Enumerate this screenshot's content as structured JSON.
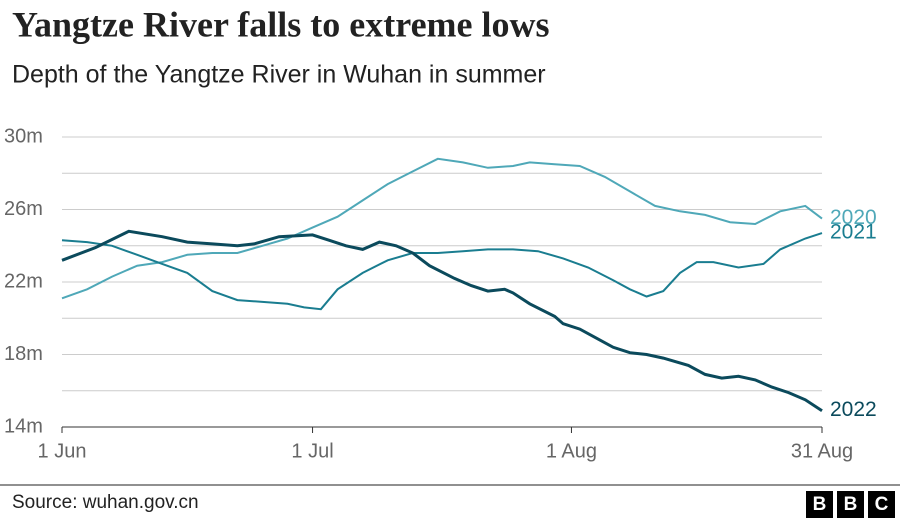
{
  "chart_data": {
    "type": "line",
    "title": "Yangtze River falls to extreme lows",
    "subtitle": "Depth of the Yangtze River in Wuhan in summer",
    "source": "Source: wuhan.gov.cn",
    "logo": [
      "B",
      "B",
      "C"
    ],
    "xlim": [
      0,
      91
    ],
    "xticks": [
      {
        "value": 0,
        "label": "1 Jun"
      },
      {
        "value": 30,
        "label": "1 Jul"
      },
      {
        "value": 61,
        "label": "1 Aug"
      },
      {
        "value": 91,
        "label": "31 Aug"
      }
    ],
    "ylim": [
      14,
      30
    ],
    "yticks": [
      {
        "value": 14,
        "label": "14m"
      },
      {
        "value": 18,
        "label": "18m"
      },
      {
        "value": 22,
        "label": "22m"
      },
      {
        "value": 26,
        "label": "26m"
      },
      {
        "value": 30,
        "label": "30m"
      }
    ],
    "minor_yticks": [
      16,
      20,
      24,
      28
    ],
    "grid": true,
    "series": [
      {
        "name": "2020",
        "color": "#4fa8b8",
        "x": [
          0,
          3,
          6,
          9,
          12,
          15,
          18,
          21,
          24,
          27,
          30,
          33,
          36,
          39,
          42,
          45,
          48,
          51,
          54,
          56,
          59,
          62,
          65,
          68,
          71,
          74,
          77,
          80,
          83,
          86,
          89,
          91
        ],
        "values": [
          21.1,
          21.6,
          22.3,
          22.9,
          23.1,
          23.5,
          23.6,
          23.6,
          24.0,
          24.4,
          25.0,
          25.6,
          26.5,
          27.4,
          28.1,
          28.8,
          28.6,
          28.3,
          28.4,
          28.6,
          28.5,
          28.4,
          27.8,
          27.0,
          26.2,
          25.9,
          25.7,
          25.3,
          25.2,
          25.9,
          26.2,
          25.5
        ]
      },
      {
        "name": "2021",
        "color": "#1a7d90",
        "x": [
          0,
          3,
          6,
          9,
          12,
          15,
          18,
          21,
          24,
          27,
          29,
          31,
          33,
          36,
          39,
          42,
          45,
          48,
          51,
          54,
          57,
          60,
          63,
          66,
          68,
          70,
          72,
          74,
          76,
          78,
          81,
          84,
          86,
          89,
          91
        ],
        "values": [
          24.3,
          24.2,
          24.0,
          23.5,
          23.0,
          22.5,
          21.5,
          21.0,
          20.9,
          20.8,
          20.6,
          20.5,
          21.6,
          22.5,
          23.2,
          23.6,
          23.6,
          23.7,
          23.8,
          23.8,
          23.7,
          23.3,
          22.8,
          22.1,
          21.6,
          21.2,
          21.5,
          22.5,
          23.1,
          23.1,
          22.8,
          23.0,
          23.8,
          24.4,
          24.7
        ]
      },
      {
        "name": "2022",
        "color": "#0b4a5c",
        "x": [
          0,
          4,
          8,
          12,
          15,
          18,
          21,
          23,
          26,
          30,
          32,
          34,
          36,
          38,
          40,
          42,
          44,
          47,
          49,
          51,
          53,
          54,
          56,
          59,
          60,
          62,
          64,
          66,
          68,
          70,
          72,
          75,
          77,
          79,
          81,
          83,
          85,
          87,
          89,
          91
        ],
        "values": [
          23.2,
          23.9,
          24.8,
          24.5,
          24.2,
          24.1,
          24.0,
          24.1,
          24.5,
          24.6,
          24.3,
          24.0,
          23.8,
          24.2,
          24.0,
          23.6,
          22.9,
          22.2,
          21.8,
          21.5,
          21.6,
          21.4,
          20.8,
          20.1,
          19.7,
          19.4,
          18.9,
          18.4,
          18.1,
          18.0,
          17.8,
          17.4,
          16.9,
          16.7,
          16.8,
          16.6,
          16.2,
          15.9,
          15.5,
          14.9
        ]
      }
    ]
  }
}
